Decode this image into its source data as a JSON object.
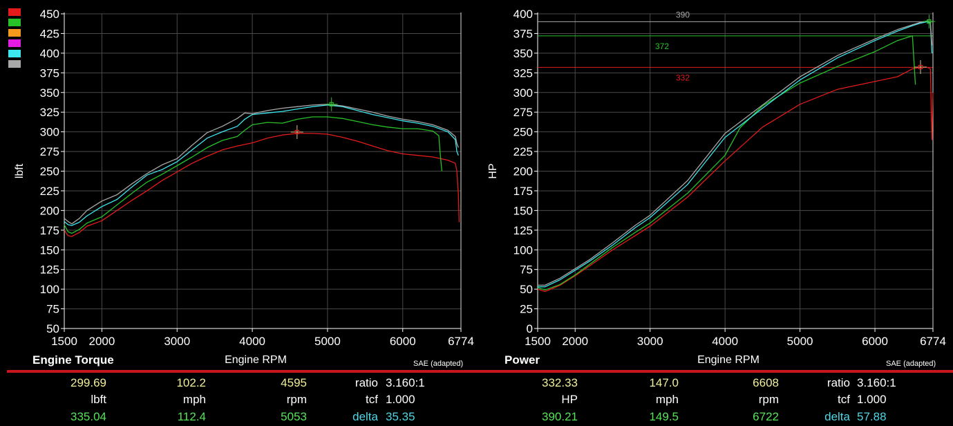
{
  "colors": {
    "red": "#e31b1b",
    "green": "#27c227",
    "orange": "#f59a1d",
    "magenta": "#e31be3",
    "cyan": "#3ce7ef",
    "gray": "#a8a8a8",
    "grid": "#4a4a4a",
    "axis": "#ffffff",
    "value_yellow": "#f1ef9a",
    "value_green": "#56e35a",
    "value_cyan": "#4fd6e4"
  },
  "legend": [
    "red",
    "green",
    "orange",
    "magenta",
    "cyan",
    "gray"
  ],
  "chart_data": [
    {
      "type": "line",
      "title": "Engine Torque",
      "xlabel": "Engine RPM",
      "ylabel": "lbft",
      "note": "SAE (adapted)",
      "xlim": [
        1500,
        6774
      ],
      "ylim": [
        50,
        450
      ],
      "xticks": [
        1500,
        2000,
        3000,
        4000,
        5000,
        6000,
        6774
      ],
      "yticks": [
        50,
        75,
        100,
        125,
        150,
        175,
        200,
        225,
        250,
        275,
        300,
        325,
        350,
        375,
        400,
        425,
        450
      ],
      "series": [
        {
          "color": "red",
          "x": [
            1500,
            1550,
            1600,
            1700,
            1800,
            2000,
            2200,
            2400,
            2600,
            2800,
            3000,
            3200,
            3400,
            3600,
            3800,
            4000,
            4200,
            4400,
            4600,
            4800,
            5000,
            5200,
            5400,
            5600,
            5800,
            6000,
            6200,
            6400,
            6600,
            6700,
            6720,
            6740,
            6750
          ],
          "y": [
            175,
            168,
            167,
            172,
            180,
            187,
            200,
            213,
            225,
            238,
            249,
            260,
            269,
            277,
            282,
            286,
            292,
            296,
            298,
            298,
            297,
            293,
            288,
            282,
            276,
            272,
            270,
            268,
            264,
            260,
            250,
            220,
            185
          ]
        },
        {
          "color": "green",
          "x": [
            1500,
            1550,
            1600,
            1700,
            1800,
            2000,
            2200,
            2400,
            2600,
            2800,
            3000,
            3200,
            3400,
            3600,
            3800,
            3900,
            4000,
            4200,
            4400,
            4600,
            4800,
            5000,
            5200,
            5400,
            5600,
            5800,
            6000,
            6200,
            6400,
            6480,
            6500,
            6520
          ],
          "y": [
            182,
            173,
            171,
            176,
            184,
            192,
            207,
            222,
            236,
            246,
            257,
            268,
            280,
            289,
            294,
            302,
            309,
            312,
            311,
            316,
            319,
            319,
            317,
            313,
            309,
            306,
            304,
            304,
            301,
            295,
            270,
            250
          ]
        },
        {
          "color": "cyan",
          "x": [
            1500,
            1550,
            1600,
            1700,
            1800,
            2000,
            2200,
            2400,
            2600,
            2800,
            3000,
            3200,
            3400,
            3600,
            3800,
            3900,
            4000,
            4200,
            4400,
            4600,
            4800,
            5000,
            5200,
            5400,
            5600,
            5800,
            6000,
            6200,
            6400,
            6600,
            6700,
            6720,
            6740
          ],
          "y": [
            186,
            182,
            181,
            185,
            193,
            205,
            214,
            230,
            245,
            252,
            262,
            277,
            292,
            300,
            307,
            316,
            322,
            324,
            326,
            329,
            332,
            334,
            332,
            327,
            322,
            318,
            314,
            311,
            307,
            300,
            290,
            275,
            270
          ]
        },
        {
          "color": "gray",
          "x": [
            1500,
            1550,
            1600,
            1700,
            1800,
            2000,
            2200,
            2400,
            2600,
            2800,
            3000,
            3200,
            3400,
            3600,
            3800,
            3900,
            4000,
            4200,
            4400,
            4600,
            4800,
            5000,
            5200,
            5400,
            5600,
            5800,
            6000,
            6200,
            6400,
            6600,
            6700,
            6720,
            6740
          ],
          "y": [
            190,
            186,
            183,
            190,
            200,
            212,
            220,
            234,
            247,
            258,
            266,
            283,
            299,
            307,
            317,
            324,
            323,
            327,
            330,
            332,
            334,
            335,
            333,
            329,
            325,
            320,
            316,
            313,
            309,
            302,
            294,
            285,
            280
          ]
        }
      ],
      "markers": [
        {
          "x": 4595,
          "y": 299.69,
          "color": "red"
        },
        {
          "x": 5053,
          "y": 335.04,
          "color": "green"
        }
      ],
      "cursor_x": 6774
    },
    {
      "type": "line",
      "title": "Power",
      "xlabel": "Engine RPM",
      "ylabel": "HP",
      "note": "SAE (adapted)",
      "xlim": [
        1500,
        6774
      ],
      "ylim": [
        0,
        400
      ],
      "xticks": [
        1500,
        2000,
        3000,
        4000,
        5000,
        6000,
        6774
      ],
      "yticks": [
        0,
        25,
        50,
        75,
        100,
        125,
        150,
        175,
        200,
        225,
        250,
        275,
        300,
        325,
        350,
        375,
        400
      ],
      "series": [
        {
          "color": "red",
          "x": [
            1500,
            1600,
            1800,
            2000,
            2200,
            2500,
            2800,
            3000,
            3500,
            4000,
            4500,
            5000,
            5500,
            6000,
            6300,
            6500,
            6600,
            6700,
            6740,
            6760,
            6774
          ],
          "y": [
            50,
            47,
            55,
            67,
            80,
            100,
            118,
            130,
            167,
            213,
            256,
            285,
            304,
            314,
            320,
            330,
            332,
            332,
            330,
            240,
            300
          ]
        },
        {
          "color": "green",
          "x": [
            1500,
            1600,
            1800,
            2000,
            2200,
            2500,
            2800,
            3000,
            3500,
            4000,
            4200,
            4500,
            5000,
            5500,
            6000,
            6300,
            6500,
            6520,
            6540
          ],
          "y": [
            52,
            49,
            56,
            68,
            82,
            103,
            122,
            134,
            172,
            220,
            255,
            283,
            312,
            333,
            352,
            366,
            372,
            340,
            310
          ]
        },
        {
          "color": "cyan",
          "x": [
            1500,
            1600,
            1800,
            2000,
            2200,
            2500,
            2800,
            3000,
            3500,
            4000,
            4500,
            5000,
            5500,
            6000,
            6300,
            6500,
            6600,
            6700,
            6740,
            6760
          ],
          "y": [
            53,
            53,
            62,
            74,
            86,
            106,
            128,
            141,
            183,
            243,
            280,
            316,
            344,
            366,
            378,
            385,
            388,
            390,
            388,
            350
          ]
        },
        {
          "color": "gray",
          "x": [
            1500,
            1600,
            1800,
            2000,
            2200,
            2500,
            2800,
            3000,
            3500,
            4000,
            4500,
            5000,
            5500,
            6000,
            6300,
            6500,
            6600,
            6700,
            6740,
            6760
          ],
          "y": [
            55,
            55,
            64,
            76,
            88,
            109,
            131,
            144,
            188,
            248,
            284,
            320,
            347,
            368,
            380,
            386,
            389,
            391,
            389,
            360
          ]
        }
      ],
      "reflines": [
        {
          "y": 390,
          "label": "390",
          "color": "gray"
        },
        {
          "y": 372,
          "label": "372",
          "color": "green"
        },
        {
          "y": 332,
          "label": "332",
          "color": "red"
        }
      ],
      "markers": [
        {
          "x": 6608,
          "y": 332.33,
          "color": "red"
        },
        {
          "x": 6722,
          "y": 390.21,
          "color": "green"
        }
      ],
      "cursor_x": 6774
    }
  ],
  "readouts": {
    "left": {
      "row1": [
        "299.69",
        "102.2",
        "4595",
        "ratio",
        "3.160:1"
      ],
      "row2": [
        "lbft",
        "mph",
        "rpm",
        "tcf",
        "1.000"
      ],
      "row3": [
        "335.04",
        "112.4",
        "5053",
        "delta",
        "35.35"
      ]
    },
    "right": {
      "row1": [
        "332.33",
        "147.0",
        "6608",
        "ratio",
        "3.160:1"
      ],
      "row2": [
        "HP",
        "mph",
        "rpm",
        "tcf",
        "1.000"
      ],
      "row3": [
        "390.21",
        "149.5",
        "6722",
        "delta",
        "57.88"
      ]
    }
  }
}
